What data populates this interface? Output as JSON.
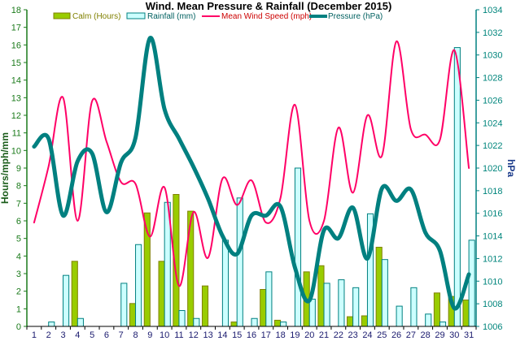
{
  "chart_data": {
    "type": "bar",
    "title": "Wind. Mean Pressure & Rainfall (December 2015)",
    "xlabel": "",
    "ylabel": "Hours/mph/mm",
    "ylabel_right": "hPa",
    "ylim": [
      0,
      18
    ],
    "ylim_right": [
      1006,
      1034
    ],
    "yticks": [
      0,
      1,
      2,
      3,
      4,
      5,
      6,
      7,
      8,
      9,
      10,
      11,
      12,
      13,
      14,
      15,
      16,
      17,
      18
    ],
    "yticks_right": [
      1006,
      1008,
      1010,
      1012,
      1014,
      1016,
      1018,
      1020,
      1022,
      1024,
      1026,
      1028,
      1030,
      1032,
      1034
    ],
    "categories": [
      "1",
      "2",
      "3",
      "4",
      "5",
      "6",
      "7",
      "8",
      "9",
      "10",
      "11",
      "12",
      "13",
      "14",
      "15",
      "16",
      "17",
      "18",
      "19",
      "20",
      "21",
      "22",
      "23",
      "24",
      "25",
      "26",
      "27",
      "28",
      "29",
      "30",
      "31"
    ],
    "legend_position": "top",
    "series": [
      {
        "name": "Calm (Hours)",
        "type": "bar",
        "axis": "left",
        "color": "#99cc00",
        "border": "#808000",
        "values": [
          0,
          0,
          0,
          3.7,
          0,
          0,
          0,
          1.3,
          6.45,
          3.7,
          7.5,
          6.55,
          2.3,
          0,
          0.25,
          0,
          2.1,
          0.35,
          0,
          3.1,
          3.45,
          0,
          0.55,
          0.6,
          4.5,
          0,
          0,
          0,
          1.9,
          1.7,
          1.5
        ]
      },
      {
        "name": "Rainfall (mm)",
        "type": "bar",
        "axis": "left",
        "color": "#ccffff",
        "border": "#008080",
        "values": [
          0,
          0.25,
          2.9,
          0.45,
          0,
          0,
          2.45,
          4.65,
          0,
          7.05,
          0.9,
          0.45,
          0,
          4.9,
          7.3,
          0.45,
          3.1,
          0.25,
          9.0,
          1.55,
          2.45,
          2.65,
          2.2,
          6.4,
          3.8,
          1.15,
          2.2,
          0.7,
          0.25,
          15.85,
          4.9
        ]
      },
      {
        "name": "Mean Wind Speed (mph)",
        "type": "line",
        "axis": "left",
        "color": "#ff0066",
        "values": [
          5.9,
          9.1,
          13.0,
          6.0,
          12.8,
          10.5,
          8.2,
          8.1,
          5.1,
          7.9,
          2.3,
          6.5,
          3.9,
          8.4,
          6.9,
          8.3,
          5.9,
          7.3,
          12.6,
          6.0,
          6.0,
          11.3,
          7.6,
          12.0,
          9.7,
          16.2,
          11.2,
          10.9,
          10.6,
          15.7,
          9.0
        ]
      },
      {
        "name": "Pressure (hPa)",
        "type": "line",
        "axis": "right",
        "color": "#008080",
        "values": [
          1021.9,
          1022.6,
          1015.8,
          1020.6,
          1021.3,
          1016.1,
          1020.5,
          1022.7,
          1031.5,
          1025.2,
          1022.6,
          1020.1,
          1017.3,
          1014.0,
          1012.4,
          1015.8,
          1015.8,
          1016.6,
          1011.2,
          1008.3,
          1014.5,
          1013.8,
          1016.5,
          1012.0,
          1018.2,
          1017.1,
          1018.1,
          1014.3,
          1012.7,
          1007.6,
          1010.6
        ]
      }
    ]
  }
}
